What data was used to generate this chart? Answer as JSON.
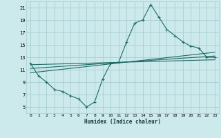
{
  "xlabel": "Humidex (Indice chaleur)",
  "ylabel": "",
  "bg_color": "#cce9ec",
  "grid_color": "#a8cdd1",
  "line_color": "#1e6b65",
  "xlim": [
    -0.5,
    23.5
  ],
  "ylim": [
    4,
    22
  ],
  "xticks": [
    0,
    1,
    2,
    3,
    4,
    5,
    6,
    7,
    8,
    9,
    10,
    11,
    12,
    13,
    14,
    15,
    16,
    17,
    18,
    19,
    20,
    21,
    22,
    23
  ],
  "yticks": [
    5,
    7,
    9,
    11,
    13,
    15,
    17,
    19,
    21
  ],
  "main_x": [
    0,
    1,
    2,
    3,
    4,
    5,
    6,
    7,
    8,
    9,
    10,
    11,
    12,
    13,
    14,
    15,
    16,
    17,
    18,
    19,
    20,
    21,
    22,
    23
  ],
  "main_y": [
    12.0,
    10.0,
    9.0,
    7.8,
    7.5,
    6.8,
    6.3,
    5.0,
    5.8,
    9.5,
    12.0,
    12.2,
    15.5,
    18.5,
    19.0,
    21.5,
    19.5,
    17.5,
    16.5,
    15.5,
    14.8,
    14.5,
    13.0,
    13.0
  ],
  "line2_x": [
    0,
    23
  ],
  "line2_y": [
    11.2,
    13.2
  ],
  "line3_x": [
    0,
    23
  ],
  "line3_y": [
    10.5,
    13.8
  ],
  "line4_x": [
    0,
    23
  ],
  "line4_y": [
    11.8,
    12.6
  ]
}
